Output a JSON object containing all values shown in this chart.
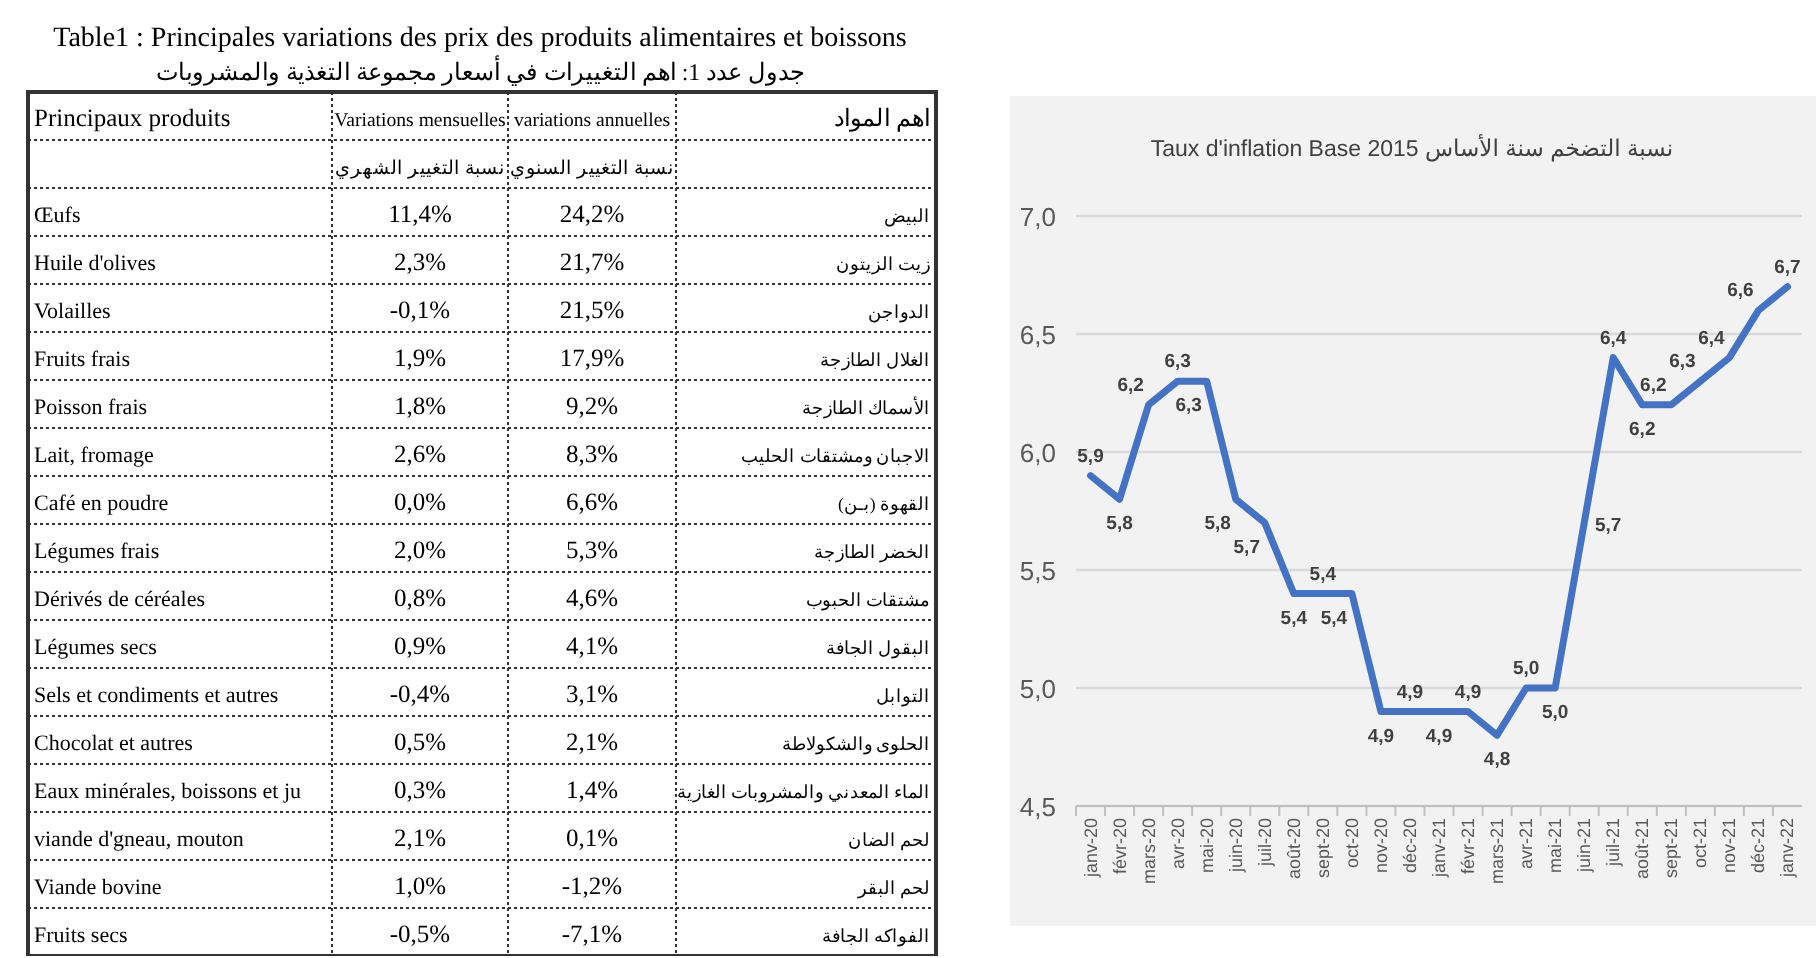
{
  "chart_data": [
    {
      "type": "heatmap",
      "title": "Table1 : Principales variations des prix des produits alimentaires et boissons",
      "subtitle": "جدول عدد 1: اهم التغييرات في أسعار مجموعة التغذية والمشروبات",
      "annotations": [
        "Principaux produits",
        "اهم المواد",
        "نسبة التغيير الشهري",
        "نسبة التغيير السنوي"
      ],
      "categories": [
        "Variations mensuelles",
        "variations annuelles"
      ],
      "y_categories": [
        "Œufs",
        "Huile d'olives",
        "Volailles",
        "Fruits frais",
        "Poisson frais",
        "Lait, fromage",
        "Café en poudre",
        "Légumes frais",
        "Dérivés de céréales",
        "Légumes secs",
        "Sels et condiments et autres",
        "Chocolat et autres",
        "Eaux minérales, boissons et ju",
        "viande d'gneau, mouton",
        "Viande bovine",
        "Fruits secs"
      ],
      "y2_categories": [
        "البيض",
        "زيت الزيتون",
        "الدواجن",
        "الغلال الطازجة",
        "الأسماك الطازجة",
        "الاجبان ومشتقات الحليب",
        "القهوة (بـن)",
        "الخضر الطازجة",
        "مشتقات الحبوب",
        "البقول الجافة",
        "التوابل",
        "الحلوى والشكولاطة",
        "الماء المعدني والمشروبات الغازية",
        "لحم الضان",
        "لحم البقر",
        "الفواكه الجافة"
      ],
      "cells": [
        [
          11.4,
          24.2
        ],
        [
          2.3,
          21.7
        ],
        [
          -0.1,
          21.5
        ],
        [
          1.9,
          17.9
        ],
        [
          1.8,
          9.2
        ],
        [
          2.6,
          8.3
        ],
        [
          0.0,
          6.6
        ],
        [
          2.0,
          5.3
        ],
        [
          0.8,
          4.6
        ],
        [
          0.9,
          4.1
        ],
        [
          -0.4,
          3.1
        ],
        [
          0.5,
          2.1
        ],
        [
          0.3,
          1.4
        ],
        [
          2.1,
          0.1
        ],
        [
          1.0,
          -1.2
        ],
        [
          -0.5,
          -7.1
        ]
      ],
      "cell_labels": [
        [
          "11,4%",
          "24,2%"
        ],
        [
          "2,3%",
          "21,7%"
        ],
        [
          "-0,1%",
          "21,5%"
        ],
        [
          "1,9%",
          "17,9%"
        ],
        [
          "1,8%",
          "9,2%"
        ],
        [
          "2,6%",
          "8,3%"
        ],
        [
          "0,0%",
          "6,6%"
        ],
        [
          "2,0%",
          "5,3%"
        ],
        [
          "0,8%",
          "4,6%"
        ],
        [
          "0,9%",
          "4,1%"
        ],
        [
          "-0,4%",
          "3,1%"
        ],
        [
          "0,5%",
          "2,1%"
        ],
        [
          "0,3%",
          "1,4%"
        ],
        [
          "2,1%",
          "0,1%"
        ],
        [
          "1,0%",
          "-1,2%"
        ],
        [
          "-0,5%",
          "-7,1%"
        ]
      ]
    },
    {
      "type": "line",
      "title": "Taux d'inflation Base 2015 نسبة التضخم سنة الأساس",
      "categories": [
        "janv-20",
        "févr-20",
        "mars-20",
        "avr-20",
        "mai-20",
        "juin-20",
        "juil-20",
        "août-20",
        "sept-20",
        "oct-20",
        "nov-20",
        "déc-20",
        "janv-21",
        "févr-21",
        "mars-21",
        "avr-21",
        "mai-21",
        "juin-21",
        "juil-21",
        "août-21",
        "sept-21",
        "oct-21",
        "nov-21",
        "déc-21",
        "janv-22"
      ],
      "series": [
        {
          "color": "#4472c4",
          "values": [
            5.9,
            5.8,
            6.2,
            6.3,
            6.3,
            5.8,
            5.7,
            5.4,
            5.4,
            5.4,
            4.9,
            4.9,
            4.9,
            4.9,
            4.8,
            5.0,
            5.0,
            5.7,
            6.4,
            6.2,
            6.2,
            6.3,
            6.4,
            6.6,
            6.7
          ],
          "value_labels": [
            "5,9",
            "5,8",
            "6,2",
            "6,3",
            "6,3",
            "5,8",
            "5,7",
            "5,4",
            "5,4",
            "5,4",
            "4,9",
            "4,9",
            "4,9",
            "4,9",
            "4,8",
            "5,0",
            "5,0",
            "5,7",
            "6,4",
            "6,2",
            "6,2",
            "6,3",
            "6,4",
            "6,6",
            "6,7"
          ]
        }
      ],
      "ylim": [
        4.5,
        7.0
      ],
      "yticks": [
        {
          "value": 4.5,
          "label": "4,5"
        },
        {
          "value": 5.0,
          "label": "5,0"
        },
        {
          "value": 5.5,
          "label": "5,5"
        },
        {
          "value": 6.0,
          "label": "6,0"
        },
        {
          "value": 6.5,
          "label": "6,5"
        },
        {
          "value": 7.0,
          "label": "7,0"
        }
      ],
      "grid": "y",
      "marker": "none",
      "line_style": "solid"
    }
  ]
}
